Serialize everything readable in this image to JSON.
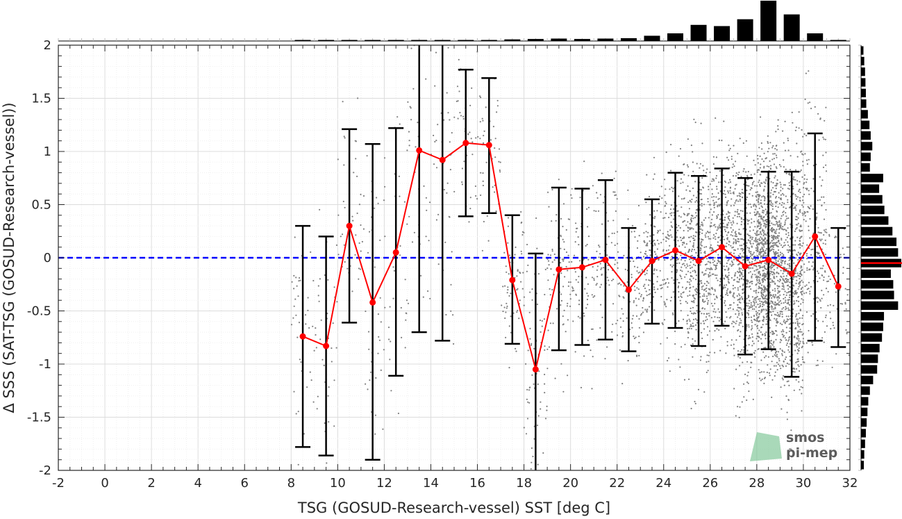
{
  "chart_data": {
    "type": "scatter",
    "title": "",
    "xlabel": "TSG (GOSUD-Research-vessel) SST [deg C]",
    "ylabel": "Δ SSS (SAT-TSG (GOSUD-Research-vessel))",
    "xlim": [
      -2,
      32
    ],
    "ylim": [
      -2,
      2
    ],
    "xticks": [
      "-2",
      "0",
      "2",
      "4",
      "6",
      "8",
      "10",
      "12",
      "14",
      "16",
      "18",
      "20",
      "22",
      "24",
      "26",
      "28",
      "30",
      "32"
    ],
    "yticks": [
      "2",
      "1.5",
      "1",
      "0.5",
      "0",
      "-0.5",
      "-1",
      "-1.5",
      "-2"
    ],
    "grid": true,
    "zero_line": {
      "y": 0,
      "style": "dashed",
      "color": "#0000ff"
    },
    "binned_mean": {
      "x": [
        8.5,
        9.5,
        10.5,
        11.5,
        12.5,
        13.5,
        14.5,
        15.5,
        16.5,
        17.5,
        18.5,
        19.5,
        20.5,
        21.5,
        22.5,
        23.5,
        24.5,
        25.5,
        26.5,
        27.5,
        28.5,
        29.5,
        30.5,
        31.5
      ],
      "y": [
        -0.74,
        -0.83,
        0.3,
        -0.42,
        0.05,
        1.01,
        0.92,
        1.08,
        1.06,
        -0.21,
        -1.05,
        -0.11,
        -0.09,
        -0.02,
        -0.3,
        -0.03,
        0.07,
        -0.03,
        0.1,
        -0.08,
        -0.02,
        -0.15,
        0.2,
        -0.27
      ],
      "err_low": [
        -1.78,
        -1.86,
        -0.61,
        -1.9,
        -1.11,
        -0.7,
        -0.78,
        0.39,
        0.42,
        -0.81,
        -2.0,
        -0.87,
        -0.82,
        -0.77,
        -0.88,
        -0.62,
        -0.66,
        -0.83,
        -0.64,
        -0.91,
        -0.86,
        -1.12,
        -0.78,
        -0.84
      ],
      "err_high": [
        0.3,
        0.2,
        1.21,
        1.07,
        1.22,
        2.0,
        2.0,
        1.77,
        1.69,
        0.4,
        0.04,
        0.66,
        0.65,
        0.73,
        0.28,
        0.55,
        0.8,
        0.77,
        0.84,
        0.75,
        0.81,
        0.81,
        1.17,
        0.28
      ],
      "color": "#ff0000"
    },
    "scatter_color": "#808080",
    "top_histogram": {
      "bin_centers": [
        8.5,
        9.5,
        10.5,
        11.5,
        12.5,
        13.5,
        14.5,
        15.5,
        16.5,
        17.5,
        18.5,
        19.5,
        20.5,
        21.5,
        22.5,
        23.5,
        24.5,
        25.5,
        26.5,
        27.5,
        28.5,
        29.5,
        30.5,
        31.5
      ],
      "values": [
        0.01,
        0.01,
        0.01,
        0.01,
        0.01,
        0.01,
        0.01,
        0.01,
        0.02,
        0.04,
        0.05,
        0.06,
        0.05,
        0.06,
        0.07,
        0.13,
        0.19,
        0.4,
        0.37,
        0.54,
        1.0,
        0.66,
        0.19,
        0.02
      ]
    },
    "right_histogram": {
      "bin_centers": [
        1.95,
        1.85,
        1.75,
        1.65,
        1.55,
        1.45,
        1.35,
        1.25,
        1.15,
        1.05,
        0.95,
        0.85,
        0.75,
        0.65,
        0.55,
        0.45,
        0.35,
        0.25,
        0.15,
        0.05,
        -0.05,
        -0.15,
        -0.25,
        -0.35,
        -0.45,
        -0.55,
        -0.65,
        -0.75,
        -0.85,
        -0.95,
        -1.05,
        -1.15,
        -1.25,
        -1.35,
        -1.45,
        -1.55,
        -1.65,
        -1.75,
        -1.85,
        -1.95
      ],
      "values": [
        0.06,
        0.08,
        0.1,
        0.11,
        0.12,
        0.13,
        0.17,
        0.21,
        0.24,
        0.28,
        0.24,
        0.22,
        0.55,
        0.45,
        0.53,
        0.58,
        0.68,
        0.78,
        0.88,
        0.92,
        1.0,
        0.74,
        0.8,
        0.82,
        0.92,
        0.57,
        0.55,
        0.52,
        0.46,
        0.42,
        0.4,
        0.3,
        0.22,
        0.18,
        0.16,
        0.14,
        0.12,
        0.1,
        0.08,
        0.07
      ]
    },
    "right_histogram_mean": {
      "y": -0.05,
      "color": "#ff0000"
    }
  },
  "logo": {
    "line1": "smos",
    "line2": "pi-mep",
    "color": "#3a9a5c"
  }
}
